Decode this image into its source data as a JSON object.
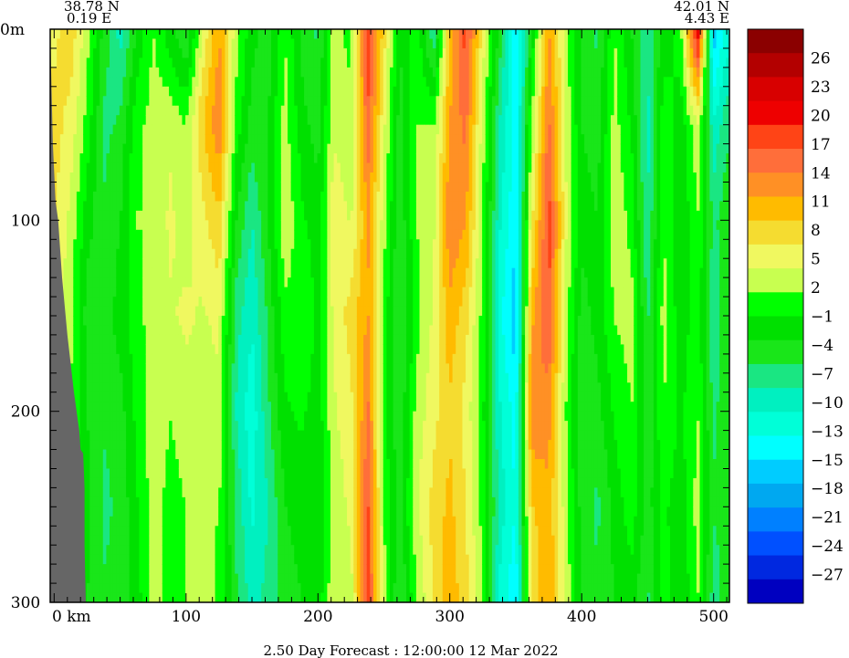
{
  "header": {
    "left_lat": "38.78 N",
    "left_lon": "0.19 E",
    "right_lat": "42.01 N",
    "right_lon": "4.43 E"
  },
  "footer": {
    "caption": "2.50 Day Forecast : 12:00:00  12 Mar 2022"
  },
  "chart_data": {
    "type": "heatmap",
    "title": "",
    "x_axis": {
      "label": "km",
      "range": [
        -3,
        512
      ],
      "ticks": [
        0,
        100,
        200,
        300,
        400,
        500
      ],
      "tick_labels": [
        "0  km",
        "100",
        "200",
        "300",
        "400",
        "500"
      ],
      "minor_step": 10
    },
    "y_axis": {
      "label": "",
      "range": [
        0,
        300
      ],
      "inverted": true,
      "ticks": [
        0,
        100,
        200,
        300
      ],
      "tick_labels": [
        "0m",
        "100",
        "200",
        "300"
      ],
      "minor_step": 20
    },
    "colorbar": {
      "position": "right",
      "labels": [
        "26",
        "23",
        "20",
        "17",
        "14",
        "11",
        "8",
        "5",
        "2",
        "-1",
        "-4",
        "-7",
        "-10",
        "-13",
        "-15",
        "-18",
        "-21",
        "-24",
        "-27"
      ],
      "colors": [
        "#8b0000",
        "#b30000",
        "#d80000",
        "#ee0000",
        "#ff4416",
        "#ff6e3a",
        "#ff9025",
        "#ffbb00",
        "#f5dc30",
        "#f0f860",
        "#c8ff50",
        "#00ff00",
        "#00e000",
        "#19e619",
        "#1ae682",
        "#00f0c0",
        "#00ffd8",
        "#00ffff",
        "#00ccff",
        "#00a8f0",
        "#0080ff",
        "#0050ff",
        "#0028e0",
        "#0000c0"
      ]
    },
    "land_color": "#666666",
    "columns": [
      {
        "x": 0,
        "values": [
          6,
          8,
          7,
          5,
          4,
          3,
          3
        ]
      },
      {
        "x": 12,
        "values": [
          9,
          6,
          4,
          3,
          2,
          1,
          2
        ]
      },
      {
        "x": 25,
        "values": [
          3,
          1,
          -2,
          -4,
          -3,
          -2,
          -3
        ]
      },
      {
        "x": 38,
        "values": [
          -4,
          -6,
          -5,
          -4,
          -5,
          -6,
          -5
        ]
      },
      {
        "x": 50,
        "values": [
          -9,
          -5,
          -3,
          -2,
          -4,
          -5,
          -4
        ]
      },
      {
        "x": 62,
        "values": [
          -3,
          1,
          2,
          1,
          0,
          -1,
          -2
        ]
      },
      {
        "x": 75,
        "values": [
          2,
          3,
          2,
          3,
          4,
          3,
          3
        ]
      },
      {
        "x": 88,
        "values": [
          -2,
          4,
          5,
          4,
          2,
          1,
          1
        ]
      },
      {
        "x": 100,
        "values": [
          -6,
          2,
          3,
          5,
          3,
          2,
          2
        ]
      },
      {
        "x": 112,
        "values": [
          4,
          9,
          6,
          4,
          3,
          3,
          4
        ]
      },
      {
        "x": 125,
        "values": [
          12,
          14,
          9,
          5,
          4,
          2,
          1
        ]
      },
      {
        "x": 138,
        "values": [
          3,
          1,
          -3,
          -7,
          -8,
          -6,
          -5
        ]
      },
      {
        "x": 150,
        "values": [
          -2,
          -4,
          -8,
          -10,
          -12,
          -11,
          -9
        ]
      },
      {
        "x": 162,
        "values": [
          -5,
          -3,
          -3,
          -5,
          -6,
          -8,
          -7
        ]
      },
      {
        "x": 175,
        "values": [
          2,
          3,
          4,
          1,
          -1,
          -3,
          -4
        ]
      },
      {
        "x": 188,
        "values": [
          -4,
          -2,
          0,
          2,
          0,
          -2,
          -3
        ]
      },
      {
        "x": 200,
        "values": [
          -6,
          -4,
          -2,
          -1,
          -2,
          -3,
          -2
        ]
      },
      {
        "x": 212,
        "values": [
          3,
          4,
          6,
          5,
          4,
          3,
          4
        ]
      },
      {
        "x": 225,
        "values": [
          1,
          3,
          4,
          8,
          6,
          5,
          3
        ]
      },
      {
        "x": 238,
        "values": [
          19,
          16,
          12,
          12,
          15,
          17,
          18
        ]
      },
      {
        "x": 250,
        "values": [
          8,
          5,
          3,
          1,
          0,
          2,
          3
        ]
      },
      {
        "x": 262,
        "values": [
          -3,
          -4,
          -5,
          -6,
          -5,
          -4,
          -6
        ]
      },
      {
        "x": 275,
        "values": [
          1,
          2,
          2,
          1,
          3,
          4,
          2
        ]
      },
      {
        "x": 288,
        "values": [
          -8,
          2,
          4,
          5,
          6,
          8,
          7
        ]
      },
      {
        "x": 300,
        "values": [
          10,
          12,
          14,
          11,
          9,
          10,
          11
        ]
      },
      {
        "x": 312,
        "values": [
          18,
          15,
          12,
          8,
          6,
          7,
          8
        ]
      },
      {
        "x": 325,
        "values": [
          6,
          3,
          2,
          1,
          0,
          1,
          2
        ]
      },
      {
        "x": 338,
        "values": [
          -4,
          -8,
          -10,
          -12,
          -10,
          -9,
          -11
        ]
      },
      {
        "x": 350,
        "values": [
          -16,
          -14,
          -15,
          -17,
          -14,
          -13,
          -15
        ]
      },
      {
        "x": 362,
        "values": [
          -3,
          2,
          6,
          11,
          14,
          9,
          7
        ]
      },
      {
        "x": 375,
        "values": [
          12,
          15,
          18,
          17,
          13,
          11,
          12
        ]
      },
      {
        "x": 388,
        "values": [
          3,
          4,
          5,
          3,
          2,
          3,
          4
        ]
      },
      {
        "x": 400,
        "values": [
          -4,
          -3,
          -2,
          -4,
          -5,
          -4,
          -3
        ]
      },
      {
        "x": 412,
        "values": [
          -6,
          -4,
          -3,
          -2,
          -4,
          -6,
          -5
        ]
      },
      {
        "x": 425,
        "values": [
          2,
          3,
          4,
          2,
          0,
          -2,
          -3
        ]
      },
      {
        "x": 438,
        "values": [
          -3,
          -1,
          1,
          3,
          2,
          1,
          -2
        ]
      },
      {
        "x": 450,
        "values": [
          -7,
          -9,
          -8,
          -6,
          -5,
          -4,
          -6
        ]
      },
      {
        "x": 462,
        "values": [
          -2,
          1,
          2,
          3,
          2,
          0,
          1
        ]
      },
      {
        "x": 475,
        "values": [
          1,
          -2,
          -3,
          -2,
          -1,
          -2,
          -3
        ]
      },
      {
        "x": 488,
        "values": [
          22,
          4,
          2,
          1,
          2,
          3,
          2
        ]
      },
      {
        "x": 500,
        "values": [
          -17,
          -10,
          -6,
          -8,
          -6,
          -5,
          -7
        ]
      },
      {
        "x": 510,
        "values": [
          -12,
          -6,
          -4,
          -3,
          -4,
          -5,
          -4
        ]
      }
    ],
    "depths": [
      0,
      50,
      100,
      150,
      200,
      250,
      300
    ],
    "land_edge": [
      {
        "depth": 0,
        "km": -3
      },
      {
        "depth": 30,
        "km": -2
      },
      {
        "depth": 60,
        "km": -1
      },
      {
        "depth": 90,
        "km": 1
      },
      {
        "depth": 100,
        "km": 3
      },
      {
        "depth": 130,
        "km": 6
      },
      {
        "depth": 160,
        "km": 10
      },
      {
        "depth": 190,
        "km": 15
      },
      {
        "depth": 210,
        "km": 19
      },
      {
        "depth": 220,
        "km": 20
      },
      {
        "depth": 222,
        "km": 22
      },
      {
        "depth": 240,
        "km": 23
      },
      {
        "depth": 270,
        "km": 23
      },
      {
        "depth": 300,
        "km": 24
      }
    ]
  }
}
